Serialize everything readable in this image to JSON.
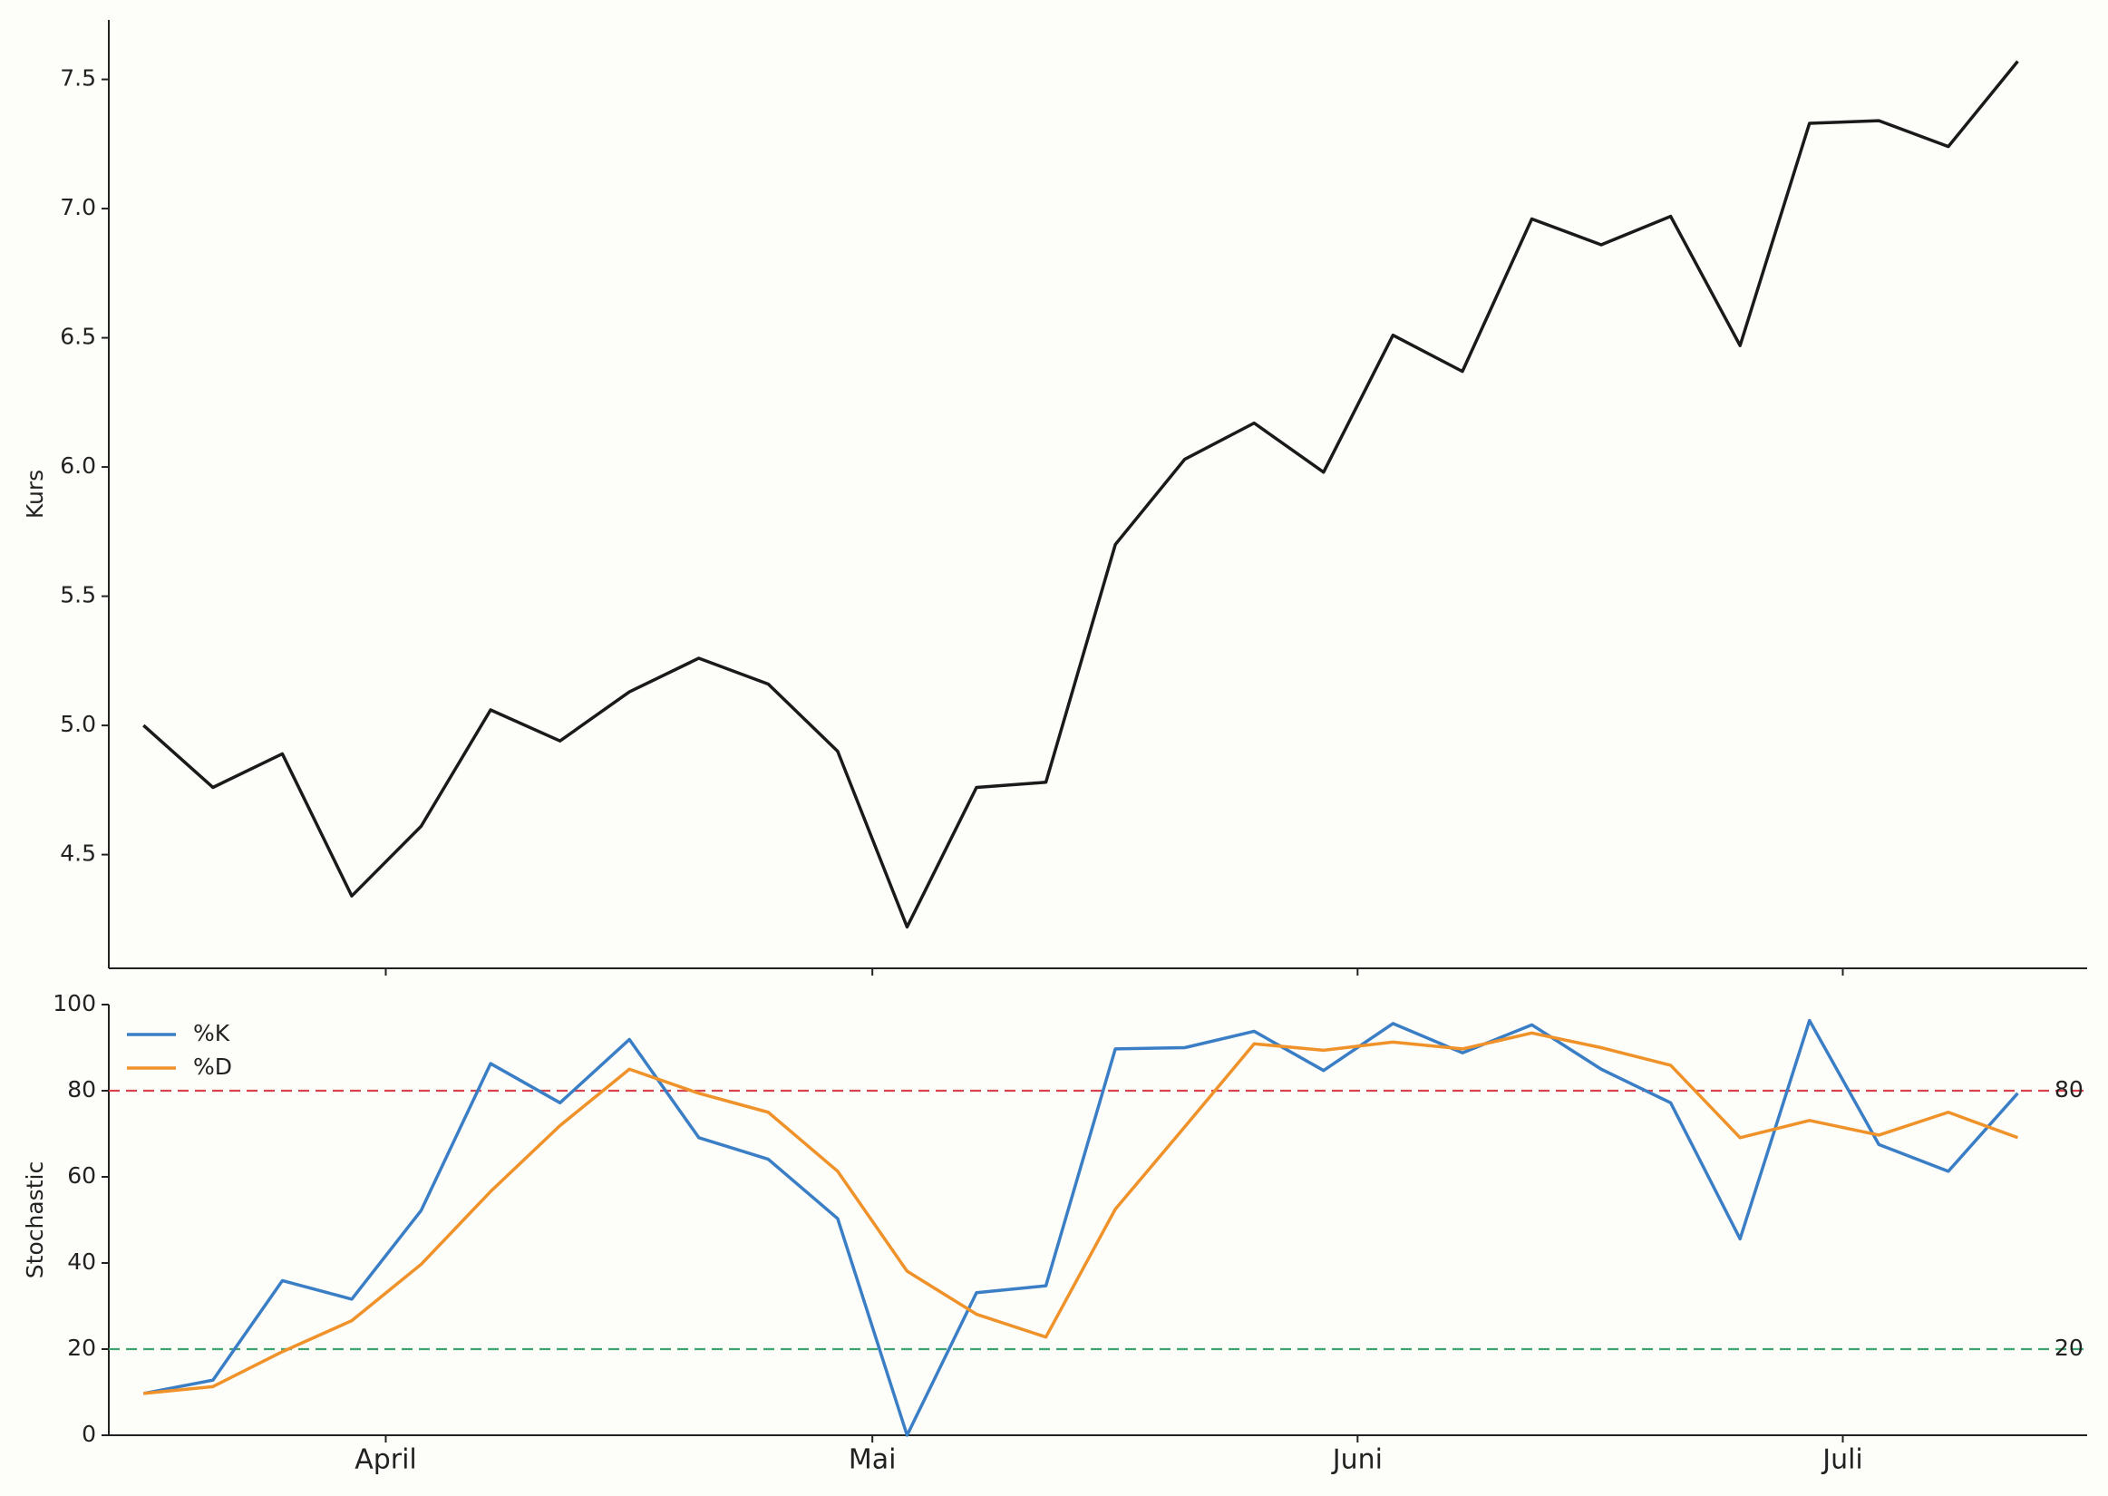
{
  "chart_data": [
    {
      "type": "line",
      "ylabel": "Kurs",
      "color": "#1a1a1a",
      "values": [
        5.0,
        4.76,
        4.89,
        4.34,
        4.61,
        5.06,
        4.94,
        5.13,
        5.26,
        5.16,
        4.9,
        4.22,
        4.76,
        4.78,
        5.7,
        6.03,
        6.17,
        5.98,
        6.51,
        6.37,
        6.96,
        6.86,
        6.97,
        6.47,
        7.33,
        7.34,
        7.24,
        7.57
      ],
      "xlim": [
        -0.5,
        28
      ],
      "ylim": [
        4.06,
        7.73
      ],
      "yticks": [
        {
          "value": 4.5,
          "label": "4.5"
        },
        {
          "value": 5,
          "label": "5.0"
        },
        {
          "value": 5.5,
          "label": "5.5"
        },
        {
          "value": 6,
          "label": "6.0"
        },
        {
          "value": 6.5,
          "label": "6.5"
        },
        {
          "value": 7,
          "label": "7.0"
        },
        {
          "value": 7.5,
          "label": "7.5"
        }
      ]
    },
    {
      "type": "line",
      "ylabel": "Stochastic",
      "series": [
        {
          "name": "%K",
          "color": "#3a7ec6",
          "values": [
            9.7,
            12.8,
            35.9,
            31.6,
            52.2,
            86.3,
            77.2,
            91.9,
            69.1,
            64.1,
            50.3,
            0,
            33.1,
            34.7,
            89.7,
            90.0,
            93.8,
            84.7,
            95.6,
            88.8,
            95.3,
            85.0,
            77.2,
            45.6,
            96.3,
            67.5,
            61.3,
            79.4
          ]
        },
        {
          "name": "%D",
          "color": "#f0922a",
          "values": [
            9.7,
            11.3,
            19.4,
            26.6,
            39.7,
            56.6,
            71.9,
            85.0,
            79.4,
            75.0,
            61.3,
            38.1,
            28.1,
            22.8,
            52.5,
            71.6,
            90.9,
            89.4,
            91.3,
            89.7,
            93.4,
            90.0,
            85.9,
            69.1,
            73.1,
            69.7,
            75.0,
            69.1
          ]
        }
      ],
      "ref_lines": [
        {
          "value": 80,
          "color": "#d9434f"
        },
        {
          "value": 20,
          "color": "#3fa36f"
        }
      ],
      "legend": "upper left",
      "xlim": [
        -0.5,
        28
      ],
      "ylim": [
        0,
        100
      ],
      "yticks": [
        0,
        20,
        40,
        60,
        80,
        100
      ],
      "xticks": [
        {
          "value": 3.49,
          "label": "April"
        },
        {
          "value": 10.5,
          "label": "Mai"
        },
        {
          "value": 17.49,
          "label": "Juni"
        },
        {
          "value": 24.48,
          "label": "Juli"
        }
      ]
    }
  ]
}
